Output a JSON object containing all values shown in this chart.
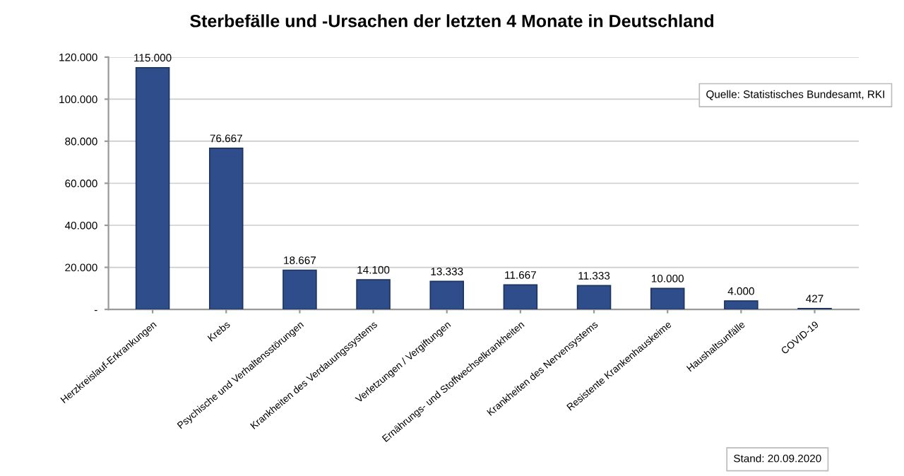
{
  "chart_data": {
    "type": "bar",
    "title": "Sterbefälle und -Ursachen der letzten 4 Monate in Deutschland",
    "categories": [
      "Herzkreislauf-Erkrankungen",
      "Krebs",
      "Psychische und Verhaltensstörungen",
      "Krankheiten des Verdauungssystems",
      "Verletzungen / Vergiftungen",
      "Ernährungs- und Stoffwechselkrankheiten",
      "Krankheiten des Nervensystems",
      "Resistente Krankenhauskeime",
      "Haushaltsunfälle",
      "COVID-19"
    ],
    "values": [
      115000,
      76667,
      18667,
      14100,
      13333,
      11667,
      11333,
      10000,
      4000,
      427
    ],
    "value_labels": [
      "115.000",
      "76.667",
      "18.667",
      "14.100",
      "13.333",
      "11.667",
      "11.333",
      "10.000",
      "4.000",
      "427"
    ],
    "color": "#2e4d8a",
    "ylim": [
      0,
      120000
    ],
    "yticks": [
      {
        "value": 0,
        "label": "-"
      },
      {
        "value": 20000,
        "label": "20.000"
      },
      {
        "value": 40000,
        "label": "40.000"
      },
      {
        "value": 60000,
        "label": "60.000"
      },
      {
        "value": 80000,
        "label": "80.000"
      },
      {
        "value": 100000,
        "label": "100.000"
      },
      {
        "value": 120000,
        "label": "120.000"
      }
    ],
    "grid": "y",
    "annotations": [
      "Quelle: Statistisches Bundesamt, RKI",
      "Stand: 20.09.2020"
    ]
  }
}
